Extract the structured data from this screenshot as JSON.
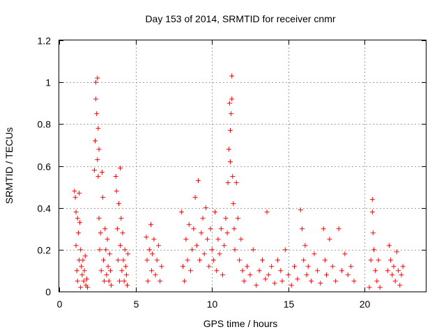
{
  "chart_data": {
    "type": "scatter",
    "title": "Day 153 of 2014, SRMTID for receiver cnmr",
    "xlabel": "GPS time / hours",
    "ylabel": "SRMTID / TECUs",
    "xlim": [
      0,
      24
    ],
    "ylim": [
      0,
      1.2
    ],
    "xticks": [
      0,
      5,
      10,
      15,
      20
    ],
    "xtick_labels": [
      "0",
      "5",
      "10",
      "15",
      "20"
    ],
    "yticks": [
      0,
      0.2,
      0.4,
      0.6,
      0.8,
      1.0,
      1.2
    ],
    "ytick_labels": [
      "0",
      "0.2",
      "0.4",
      "0.6",
      "0.8",
      "1",
      "1.2"
    ],
    "grid": true,
    "marker": "+",
    "color": "#ff0000",
    "series": [
      {
        "name": "SRMTID",
        "x": [
          1.0,
          1.05,
          1.1,
          1.1,
          1.15,
          1.2,
          1.2,
          1.25,
          1.3,
          1.3,
          1.35,
          1.4,
          1.4,
          1.45,
          1.5,
          1.55,
          1.6,
          1.65,
          1.7,
          1.75,
          1.8,
          1.85,
          2.3,
          2.35,
          2.4,
          2.4,
          2.45,
          2.5,
          2.5,
          2.55,
          2.55,
          2.6,
          2.6,
          2.65,
          2.7,
          2.75,
          2.8,
          2.85,
          2.9,
          2.95,
          3.0,
          3.05,
          3.1,
          3.15,
          3.2,
          3.25,
          3.3,
          3.35,
          3.4,
          3.7,
          3.75,
          3.8,
          3.85,
          3.9,
          3.95,
          4.0,
          4.0,
          4.05,
          4.1,
          4.15,
          4.2,
          4.25,
          4.3,
          4.35,
          4.4,
          4.45,
          4.5,
          5.7,
          5.75,
          5.8,
          5.9,
          6.0,
          6.05,
          6.1,
          6.2,
          6.3,
          6.4,
          6.5,
          6.6,
          6.7,
          8.0,
          8.1,
          8.2,
          8.3,
          8.4,
          8.5,
          8.6,
          8.7,
          8.8,
          8.9,
          9.0,
          9.1,
          9.2,
          9.3,
          9.4,
          9.5,
          9.6,
          9.7,
          9.8,
          9.9,
          10.0,
          10.1,
          10.2,
          10.3,
          10.4,
          10.5,
          10.6,
          10.7,
          10.8,
          10.9,
          11.0,
          11.05,
          11.1,
          11.15,
          11.2,
          11.2,
          11.25,
          11.3,
          11.3,
          11.35,
          11.4,
          11.45,
          11.5,
          11.6,
          11.7,
          11.8,
          11.9,
          12.0,
          12.1,
          12.3,
          12.5,
          12.7,
          12.9,
          13.1,
          13.3,
          13.5,
          13.6,
          13.7,
          13.9,
          14.1,
          14.3,
          14.5,
          14.6,
          14.8,
          15.0,
          15.2,
          15.4,
          15.6,
          15.8,
          15.9,
          16.0,
          16.1,
          16.2,
          16.3,
          16.5,
          16.7,
          16.9,
          17.1,
          17.3,
          17.4,
          17.5,
          17.7,
          17.9,
          18.1,
          18.3,
          18.5,
          18.7,
          18.9,
          19.1,
          19.3,
          20.3,
          20.4,
          20.5,
          20.5,
          20.55,
          20.6,
          20.7,
          20.8,
          20.9,
          21.0,
          21.5,
          21.6,
          21.7,
          21.8,
          21.9,
          22.0,
          22.1,
          22.2,
          22.3,
          22.4,
          22.5
        ],
        "y": [
          0.48,
          0.45,
          0.38,
          0.22,
          0.1,
          0.35,
          0.05,
          0.28,
          0.47,
          0.15,
          0.33,
          0.2,
          0.02,
          0.12,
          0.08,
          0.15,
          0.05,
          0.1,
          0.17,
          0.03,
          0.06,
          0.02,
          0.58,
          0.72,
          0.92,
          1.0,
          0.85,
          0.63,
          1.02,
          0.78,
          0.55,
          0.68,
          0.35,
          0.2,
          0.28,
          0.1,
          0.57,
          0.45,
          0.15,
          0.05,
          0.3,
          0.2,
          0.08,
          0.25,
          0.12,
          0.05,
          0.18,
          0.1,
          0.03,
          0.55,
          0.48,
          0.3,
          0.15,
          0.42,
          0.05,
          0.59,
          0.22,
          0.35,
          0.1,
          0.28,
          0.15,
          0.05,
          0.2,
          0.12,
          0.08,
          0.03,
          0.18,
          0.26,
          0.15,
          0.05,
          0.2,
          0.32,
          0.1,
          0.18,
          0.25,
          0.08,
          0.15,
          0.22,
          0.05,
          0.12,
          0.38,
          0.12,
          0.05,
          0.25,
          0.15,
          0.32,
          0.1,
          0.2,
          0.3,
          0.45,
          0.22,
          0.53,
          0.15,
          0.28,
          0.35,
          0.18,
          0.4,
          0.25,
          0.12,
          0.3,
          0.2,
          0.15,
          0.38,
          0.1,
          0.25,
          0.18,
          0.3,
          0.08,
          0.22,
          0.35,
          0.28,
          0.52,
          0.68,
          0.9,
          0.77,
          0.62,
          0.85,
          1.03,
          0.92,
          0.55,
          0.42,
          0.3,
          0.2,
          0.52,
          0.35,
          0.15,
          0.25,
          0.1,
          0.05,
          0.12,
          0.08,
          0.2,
          0.03,
          0.1,
          0.15,
          0.06,
          0.38,
          0.08,
          0.12,
          0.04,
          0.15,
          0.1,
          0.05,
          0.2,
          0.08,
          0.03,
          0.12,
          0.06,
          0.39,
          0.3,
          0.15,
          0.22,
          0.08,
          0.12,
          0.05,
          0.18,
          0.1,
          0.04,
          0.3,
          0.15,
          0.08,
          0.25,
          0.12,
          0.05,
          0.3,
          0.1,
          0.18,
          0.08,
          0.12,
          0.05,
          0.02,
          0.15,
          0.44,
          0.38,
          0.28,
          0.2,
          0.1,
          0.05,
          0.15,
          0.02,
          0.1,
          0.22,
          0.15,
          0.08,
          0.12,
          0.05,
          0.19,
          0.1,
          0.03,
          0.08,
          0.12
        ]
      }
    ]
  }
}
